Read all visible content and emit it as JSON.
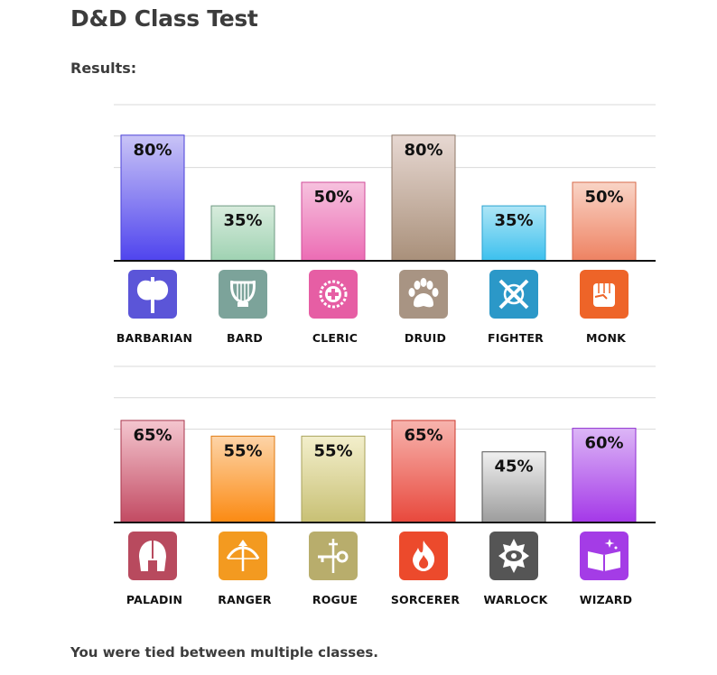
{
  "page": {
    "title": "D&D Class Test",
    "results_label": "Results:",
    "footer": "You were tied between multiple classes."
  },
  "chart_data": [
    {
      "type": "bar",
      "categories": [
        "BARBARIAN",
        "BARD",
        "CLERIC",
        "DRUID",
        "FIGHTER",
        "MONK"
      ],
      "values": [
        80,
        35,
        50,
        80,
        35,
        50
      ],
      "data_labels": [
        "80%",
        "35%",
        "50%",
        "80%",
        "35%",
        "50%"
      ],
      "ylim": [
        0,
        100
      ],
      "grid": true,
      "colors": [
        {
          "top": "#c9c4f6",
          "bottom": "#4f44ee",
          "stroke": "#4a40d8"
        },
        {
          "top": "#d8ecdd",
          "bottom": "#9fd2b2",
          "stroke": "#6f9a83"
        },
        {
          "top": "#f6c2de",
          "bottom": "#ec6cb4",
          "stroke": "#d04a98"
        },
        {
          "top": "#e7d8d2",
          "bottom": "#a9907a",
          "stroke": "#8f7868"
        },
        {
          "top": "#aee6f6",
          "bottom": "#3cc0ee",
          "stroke": "#2aa2d0"
        },
        {
          "top": "#f9d4c6",
          "bottom": "#ee8262",
          "stroke": "#d76a4a"
        }
      ],
      "icons": [
        "battle-axe-icon",
        "lyre-icon",
        "holy-symbol-icon",
        "paw-print-icon",
        "crossed-swords-icon",
        "fist-icon"
      ],
      "icon_colors": [
        "#5b55d8",
        "#7ca39a",
        "#e65ea4",
        "#a89483",
        "#2b98c8",
        "#ee6428"
      ]
    },
    {
      "type": "bar",
      "categories": [
        "PALADIN",
        "RANGER",
        "ROGUE",
        "SORCERER",
        "WARLOCK",
        "WIZARD"
      ],
      "values": [
        65,
        55,
        55,
        65,
        45,
        60
      ],
      "data_labels": [
        "65%",
        "55%",
        "55%",
        "65%",
        "45%",
        "60%"
      ],
      "ylim": [
        0,
        100
      ],
      "grid": true,
      "colors": [
        {
          "top": "#f4c6cf",
          "bottom": "#c24a62",
          "stroke": "#a8364c"
        },
        {
          "top": "#fdd4a8",
          "bottom": "#fb8a12",
          "stroke": "#e07a10"
        },
        {
          "top": "#f3efcc",
          "bottom": "#c8c074",
          "stroke": "#a8a25a"
        },
        {
          "top": "#f7b4ae",
          "bottom": "#e8483c",
          "stroke": "#cc3a2e"
        },
        {
          "top": "#f0f0f0",
          "bottom": "#9c9c9c",
          "stroke": "#555555"
        },
        {
          "top": "#dcb6f6",
          "bottom": "#a438e8",
          "stroke": "#8e2ed0"
        }
      ],
      "icons": [
        "spartan-helmet-icon",
        "bow-arrow-icon",
        "dagger-key-icon",
        "flame-icon",
        "eye-sigil-icon",
        "spellbook-icon"
      ],
      "icon_colors": [
        "#b84a5e",
        "#f39a20",
        "#b8ad6c",
        "#ec4a2c",
        "#555555",
        "#a43ce6"
      ]
    }
  ]
}
